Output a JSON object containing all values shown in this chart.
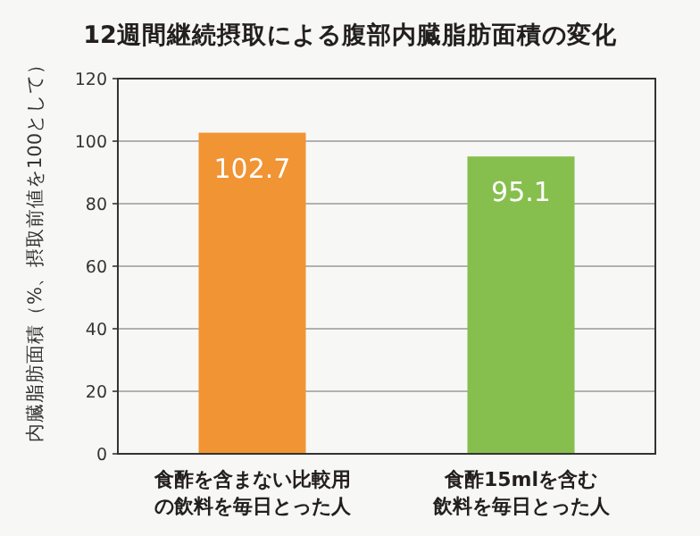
{
  "chart_data": {
    "type": "bar",
    "title": "12週間継続摂取による腹部内臓脂肪面積の変化",
    "ylabel": "内臓脂肪面積（%、摂取前値を100として）",
    "categories": [
      "食酢を含まない比較用の飲料を毎日とった人",
      "食酢15mlを含む飲料を毎日とった人"
    ],
    "values": [
      102.7,
      95.1
    ],
    "colors": [
      "#f19433",
      "#86bf4d"
    ],
    "ylim": [
      0,
      120
    ],
    "yticks": [
      0,
      20,
      40,
      60,
      80,
      100,
      120
    ],
    "grid": "y",
    "data_labels": true
  }
}
